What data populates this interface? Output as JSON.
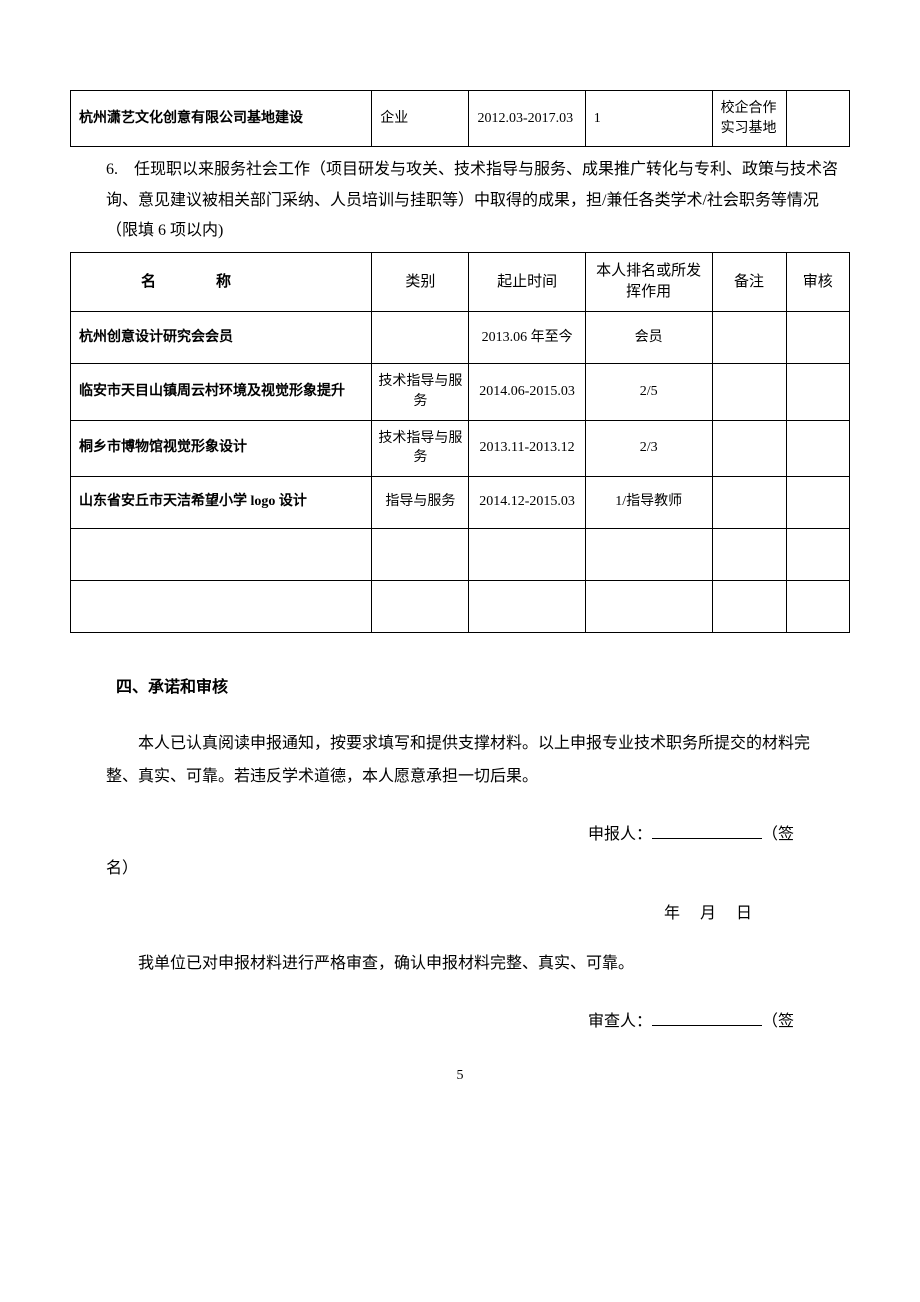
{
  "table1": {
    "row": {
      "name": "杭州潇艺文化创意有限公司基地建设",
      "type": "企业",
      "period": "2012.03-2017.03",
      "role": "1",
      "note": "校企合作实习基地",
      "audit": ""
    }
  },
  "section6": {
    "text": "6.　任现职以来服务社会工作（项目研发与攻关、技术指导与服务、成果推广转化与专利、政策与技术咨询、意见建议被相关部门采纳、人员培训与挂职等）中取得的成果，担/兼任各类学术/社会职务等情况（限填 6 项以内)"
  },
  "table2": {
    "headers": {
      "name": "名称",
      "type": "类别",
      "period": "起止时间",
      "role": "本人排名或所发挥作用",
      "note": "备注",
      "audit": "审核"
    },
    "rows": [
      {
        "name": "杭州创意设计研究会会员",
        "type": "",
        "period": "2013.06 年至今",
        "role": "会员",
        "note": "",
        "audit": ""
      },
      {
        "name": "临安市天目山镇周云村环境及视觉形象提升",
        "type": "技术指导与服务",
        "period": "2014.06-2015.03",
        "role": "2/5",
        "note": "",
        "audit": ""
      },
      {
        "name": "桐乡市博物馆视觉形象设计",
        "type": "技术指导与服务",
        "period": "2013.11-2013.12",
        "role": "2/3",
        "note": "",
        "audit": ""
      },
      {
        "name": "山东省安丘市天洁希望小学 logo 设计",
        "type": "指导与服务",
        "period": "2014.12-2015.03",
        "role": "1/指导教师",
        "note": "",
        "audit": ""
      },
      {
        "name": "",
        "type": "",
        "period": "",
        "role": "",
        "note": "",
        "audit": ""
      },
      {
        "name": "",
        "type": "",
        "period": "",
        "role": "",
        "note": "",
        "audit": ""
      }
    ]
  },
  "heading4": "四、承诺和审核",
  "declaration": "本人已认真阅读申报通知，按要求填写和提供支撑材料。以上申报专业技术职务所提交的材料完整、真实、可靠。若违反学术道德，本人愿意承担一切后果。",
  "applicant_label": "申报人：",
  "sign_suffix": "（签",
  "sign_suffix2": "名）",
  "date_line": "年　月　日",
  "unit_declaration": "我单位已对申报材料进行严格审查，确认申报材料完整、真实、可靠。",
  "reviewer_label": "审查人：",
  "page_number": "5"
}
